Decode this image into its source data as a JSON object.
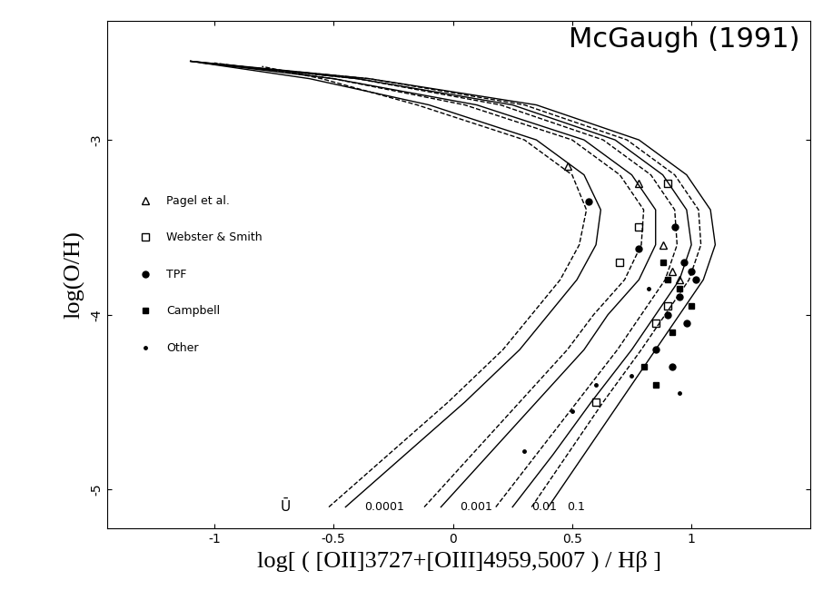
{
  "chart_data": {
    "type": "line",
    "title": "McGaugh (1991)",
    "x_label": "log[ ( [OII]3727+[OIII]4959,5007 ) / Hβ ]",
    "y_label": "log(O/H)",
    "xlim": [
      -1.45,
      1.5
    ],
    "ylim": [
      -5.22,
      -2.32
    ],
    "xticks": [
      -1,
      -0.5,
      0,
      0.5,
      1
    ],
    "yticks": [
      -3,
      -4,
      -5
    ],
    "u_label": "Ū",
    "legend": "center left",
    "curves": [
      {
        "u": "0.0001",
        "line_style": "solid",
        "x": [
          -0.45,
          -0.2,
          0.05,
          0.28,
          0.4,
          0.52,
          0.6,
          0.62,
          0.55,
          0.35,
          -0.1,
          -0.6,
          -1.1
        ],
        "y": [
          -5.1,
          -4.8,
          -4.5,
          -4.2,
          -4.0,
          -3.8,
          -3.6,
          -3.4,
          -3.2,
          -3.0,
          -2.8,
          -2.65,
          -2.55
        ]
      },
      {
        "u": "0.0001",
        "line_style": "dashed",
        "x": [
          -0.52,
          -0.27,
          -0.02,
          0.21,
          0.33,
          0.45,
          0.53,
          0.56,
          0.5,
          0.3,
          -0.15,
          -0.55,
          -0.8
        ],
        "y": [
          -5.1,
          -4.8,
          -4.5,
          -4.2,
          -4.0,
          -3.8,
          -3.6,
          -3.4,
          -3.2,
          -3.0,
          -2.8,
          -2.65,
          -2.58
        ]
      },
      {
        "u": "0.001",
        "line_style": "solid",
        "x": [
          -0.05,
          0.15,
          0.35,
          0.55,
          0.65,
          0.78,
          0.85,
          0.85,
          0.75,
          0.55,
          0.1,
          -0.5,
          -1.1
        ],
        "y": [
          -5.1,
          -4.8,
          -4.5,
          -4.2,
          -4.0,
          -3.8,
          -3.6,
          -3.4,
          -3.2,
          -3.0,
          -2.8,
          -2.65,
          -2.55
        ]
      },
      {
        "u": "0.001",
        "line_style": "dashed",
        "x": [
          -0.12,
          0.08,
          0.28,
          0.48,
          0.59,
          0.72,
          0.79,
          0.8,
          0.7,
          0.5,
          0.05,
          -0.5,
          -1.0
        ],
        "y": [
          -5.1,
          -4.8,
          -4.5,
          -4.2,
          -4.0,
          -3.8,
          -3.6,
          -3.4,
          -3.2,
          -3.0,
          -2.8,
          -2.65,
          -2.56
        ]
      },
      {
        "u": "0.01",
        "line_style": "solid",
        "x": [
          0.25,
          0.42,
          0.58,
          0.75,
          0.85,
          0.95,
          1.0,
          0.98,
          0.88,
          0.68,
          0.25,
          -0.4,
          -1.1
        ],
        "y": [
          -5.1,
          -4.8,
          -4.5,
          -4.2,
          -4.0,
          -3.8,
          -3.6,
          -3.4,
          -3.2,
          -3.0,
          -2.8,
          -2.65,
          -2.55
        ]
      },
      {
        "u": "0.01",
        "line_style": "dashed",
        "x": [
          0.18,
          0.35,
          0.52,
          0.69,
          0.79,
          0.89,
          0.94,
          0.93,
          0.83,
          0.63,
          0.2,
          -0.4,
          -1.05
        ],
        "y": [
          -5.1,
          -4.8,
          -4.5,
          -4.2,
          -4.0,
          -3.8,
          -3.6,
          -3.4,
          -3.2,
          -3.0,
          -2.8,
          -2.65,
          -2.56
        ]
      },
      {
        "u": "0.1",
        "line_style": "solid",
        "x": [
          0.4,
          0.55,
          0.7,
          0.85,
          0.95,
          1.05,
          1.1,
          1.08,
          0.98,
          0.78,
          0.35,
          -0.35,
          -1.1
        ],
        "y": [
          -5.1,
          -4.8,
          -4.5,
          -4.2,
          -4.0,
          -3.8,
          -3.6,
          -3.4,
          -3.2,
          -3.0,
          -2.8,
          -2.65,
          -2.55
        ]
      },
      {
        "u": "0.1",
        "line_style": "dashed",
        "x": [
          0.33,
          0.48,
          0.63,
          0.79,
          0.89,
          0.99,
          1.04,
          1.03,
          0.93,
          0.73,
          0.3,
          -0.35,
          -1.05
        ],
        "y": [
          -5.1,
          -4.8,
          -4.5,
          -4.2,
          -4.0,
          -3.8,
          -3.6,
          -3.4,
          -3.2,
          -3.0,
          -2.8,
          -2.65,
          -2.56
        ]
      }
    ],
    "series": [
      {
        "name": "Pagel et al.",
        "marker": "triangle",
        "x": [
          0.48,
          0.78,
          0.92,
          0.95,
          0.88
        ],
        "y": [
          -3.15,
          -3.25,
          -3.75,
          -3.8,
          -3.6
        ]
      },
      {
        "name": "Webster & Smith",
        "marker": "square",
        "x": [
          0.78,
          0.9,
          0.7,
          0.85,
          0.9,
          0.6
        ],
        "y": [
          -3.5,
          -3.25,
          -3.7,
          -4.05,
          -3.95,
          -4.5
        ]
      },
      {
        "name": "TPF",
        "marker": "circle",
        "x": [
          0.57,
          0.78,
          0.93,
          0.97,
          1.0,
          0.95,
          0.9,
          0.85,
          0.98,
          1.02,
          0.92
        ],
        "y": [
          -3.35,
          -3.62,
          -3.5,
          -3.7,
          -3.75,
          -3.9,
          -4.0,
          -4.2,
          -4.05,
          -3.8,
          -4.3
        ]
      },
      {
        "name": "Campbell",
        "marker": "filled_square",
        "x": [
          0.9,
          0.95,
          0.92,
          1.0,
          0.88,
          0.8,
          0.85
        ],
        "y": [
          -3.8,
          -3.85,
          -4.1,
          -3.95,
          -3.7,
          -4.3,
          -4.4
        ]
      },
      {
        "name": "Other",
        "marker": "dot",
        "x": [
          0.3,
          0.6,
          0.75,
          0.95,
          0.5,
          0.82
        ],
        "y": [
          -4.78,
          -4.4,
          -4.35,
          -4.45,
          -4.55,
          -3.85
        ]
      }
    ]
  }
}
